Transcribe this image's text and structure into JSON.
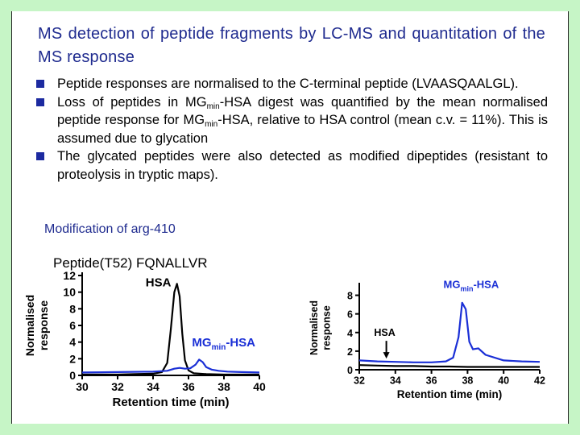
{
  "title": "MS detection of peptide fragments by LC-MS and quantitation of the MS response",
  "bullets": [
    {
      "text": "Peptide responses are normalised to the C-terminal peptide (LVAASQAALGL)."
    },
    {
      "pre": "Loss of peptides in MG",
      "sub": "min",
      "mid": "-HSA digest was quantified by the mean normalised peptide response for MG",
      "sub2": "min",
      "post": "-HSA, relative to HSA control (mean c.v. = 11%). This is assumed due to glycation"
    },
    {
      "text": "The glycated peptides were also detected as modified dipeptides (resistant to proteolysis in tryptic maps)."
    }
  ],
  "captions": {
    "modification": "Modification of arg-410",
    "peptide": "Peptide(T52) FQNALLVR"
  },
  "colors": {
    "hsa_trace": "#000000",
    "mgmin_trace": "#1a2fd6",
    "heading": "#1f2b8f",
    "bullet": "#1c2aa0",
    "frame": "#c6f5c6"
  },
  "chart_data": [
    {
      "type": "line",
      "xlabel": "Retention time (min)",
      "ylabel": "Normalised response",
      "xlim": [
        30,
        40
      ],
      "ylim": [
        0,
        12
      ],
      "xticks": [
        30,
        32,
        34,
        36,
        38,
        40
      ],
      "yticks": [
        0,
        2,
        4,
        6,
        8,
        10,
        12
      ],
      "series": [
        {
          "name": "HSA",
          "color": "#000000",
          "x": [
            30,
            32,
            33,
            34,
            34.5,
            34.8,
            35.0,
            35.2,
            35.35,
            35.5,
            35.65,
            35.8,
            36.0,
            36.3,
            37,
            38,
            39,
            40
          ],
          "y": [
            0.1,
            0.1,
            0.15,
            0.2,
            0.4,
            1.5,
            5.5,
            10.0,
            11.0,
            9.5,
            5.0,
            1.8,
            0.6,
            0.25,
            0.15,
            0.1,
            0.1,
            0.1
          ]
        },
        {
          "name": "MGmin-HSA",
          "name_main": "MG",
          "name_sub": "min",
          "name_post": "-HSA",
          "color": "#1a2fd6",
          "x": [
            30,
            32,
            34,
            34.8,
            35.2,
            35.5,
            35.8,
            36.1,
            36.4,
            36.6,
            36.8,
            37.0,
            37.3,
            37.7,
            38.2,
            39,
            40
          ],
          "y": [
            0.35,
            0.4,
            0.45,
            0.55,
            0.8,
            0.9,
            0.8,
            0.85,
            1.3,
            1.9,
            1.6,
            1.0,
            0.7,
            0.55,
            0.45,
            0.4,
            0.35
          ]
        }
      ]
    },
    {
      "type": "line",
      "xlabel": "Retention time (min)",
      "ylabel": "Normalised response",
      "xlim": [
        32,
        42
      ],
      "ylim": [
        0,
        9
      ],
      "xticks": [
        32,
        34,
        36,
        38,
        40,
        42
      ],
      "yticks": [
        0,
        2,
        4,
        6,
        8
      ],
      "annotation": {
        "label": "HSA",
        "x": 33.5,
        "y": 1.2
      },
      "series": [
        {
          "name": "HSA",
          "color": "#000000",
          "x": [
            32,
            33,
            34,
            35,
            36,
            37,
            38,
            39,
            40,
            41,
            42
          ],
          "y": [
            0.5,
            0.45,
            0.4,
            0.4,
            0.35,
            0.35,
            0.3,
            0.3,
            0.3,
            0.3,
            0.3
          ]
        },
        {
          "name": "MGmin-HSA",
          "name_main": "MG",
          "name_sub": "min",
          "name_post": "-HSA",
          "color": "#1a2fd6",
          "x": [
            32,
            33,
            34,
            35,
            36,
            36.8,
            37.2,
            37.5,
            37.7,
            37.9,
            38.1,
            38.3,
            38.6,
            39,
            40,
            41,
            42
          ],
          "y": [
            1.0,
            0.9,
            0.85,
            0.8,
            0.8,
            0.9,
            1.3,
            3.5,
            7.2,
            6.5,
            3.0,
            2.2,
            2.3,
            1.6,
            1.0,
            0.9,
            0.85
          ]
        }
      ]
    }
  ]
}
